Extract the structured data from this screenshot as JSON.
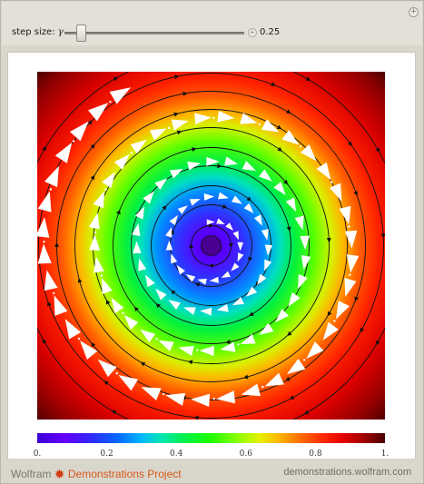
{
  "controls": {
    "step_label": "step size:",
    "step_symbol": "γ",
    "step_value": "0.25",
    "step_fraction": 0.08,
    "add_icon": "plus-icon"
  },
  "plot": {
    "colorbar_ticks": [
      "0.",
      "0.2",
      "0.4",
      "0.6",
      "0.8",
      "1."
    ],
    "colormap": [
      "#3a00d4",
      "#6600ff",
      "#0070ff",
      "#00e8b0",
      "#20ff00",
      "#e6f000",
      "#ffb000",
      "#ff2a00",
      "#a00000",
      "#4a0000"
    ]
  },
  "footer": {
    "wolfram": "Wolfram",
    "logo_icon": "spikey-icon",
    "demonstrations": "Demonstrations Project",
    "site": "demonstrations.wolfram.com"
  }
}
